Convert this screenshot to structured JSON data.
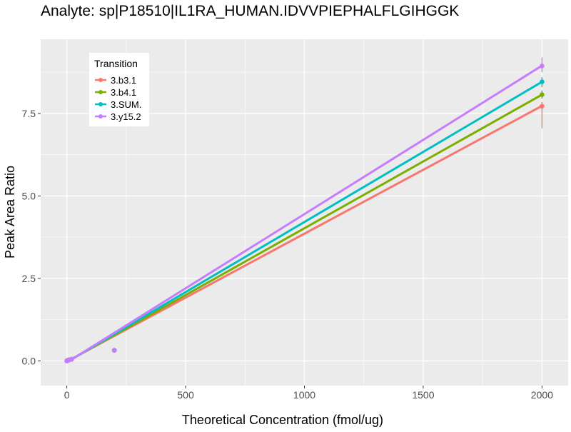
{
  "chart_data": {
    "type": "scatter",
    "title": "Analyte: sp|P18510|IL1RA_HUMAN.IDVVPIEPHALFLGIHGGK",
    "xlabel": "Theoretical Concentration (fmol/ug)",
    "ylabel": "Peak Area Ratio",
    "xlim": [
      -110,
      2110
    ],
    "ylim": [
      -0.75,
      9.75
    ],
    "x_ticks": [
      0,
      500,
      1000,
      1500,
      2000
    ],
    "x_tick_labels": [
      "0",
      "500",
      "1000",
      "1500",
      "2000"
    ],
    "y_ticks": [
      0,
      2.5,
      5,
      7.5
    ],
    "y_tick_labels": [
      "0.0",
      "2.5",
      "5.0",
      "7.5"
    ],
    "grid": true,
    "legend": {
      "title": "Transition",
      "position": "top-left"
    },
    "series": [
      {
        "name": "3.b3.1",
        "color": "#F8766D",
        "points": [
          [
            0,
            0.0
          ],
          [
            2,
            0.01
          ],
          [
            5,
            0.02
          ],
          [
            10,
            0.03
          ],
          [
            20,
            0.05
          ],
          [
            200,
            0.32
          ],
          [
            2000,
            7.72
          ]
        ],
        "fit": {
          "intercept": -0.02,
          "slope": 0.003875
        },
        "error_bar": {
          "x": 2000,
          "low": 7.05,
          "high": 7.85
        }
      },
      {
        "name": "3.b4.1",
        "color": "#7CAE00",
        "points": [
          [
            0,
            0.0
          ],
          [
            2,
            0.01
          ],
          [
            5,
            0.02
          ],
          [
            10,
            0.03
          ],
          [
            20,
            0.05
          ],
          [
            200,
            0.32
          ],
          [
            2000,
            8.07
          ]
        ],
        "fit": {
          "intercept": -0.03,
          "slope": 0.00405
        },
        "error_bar": {
          "x": 2000,
          "low": 7.95,
          "high": 8.2
        }
      },
      {
        "name": "3.SUM.",
        "color": "#00BFC4",
        "points": [
          [
            0,
            0.0
          ],
          [
            2,
            0.01
          ],
          [
            5,
            0.02
          ],
          [
            10,
            0.03
          ],
          [
            20,
            0.05
          ],
          [
            200,
            0.32
          ],
          [
            2000,
            8.46
          ]
        ],
        "fit": {
          "intercept": -0.04,
          "slope": 0.00425
        },
        "error_bar": {
          "x": 2000,
          "low": 8.3,
          "high": 8.6
        }
      },
      {
        "name": "3.y15.2",
        "color": "#C77CFF",
        "points": [
          [
            0,
            0.0
          ],
          [
            2,
            0.01
          ],
          [
            5,
            0.02
          ],
          [
            10,
            0.03
          ],
          [
            20,
            0.05
          ],
          [
            200,
            0.32
          ],
          [
            2000,
            8.94
          ]
        ],
        "fit": {
          "intercept": -0.05,
          "slope": 0.0045
        },
        "error_bar": {
          "x": 2000,
          "low": 8.75,
          "high": 9.2
        }
      }
    ]
  }
}
